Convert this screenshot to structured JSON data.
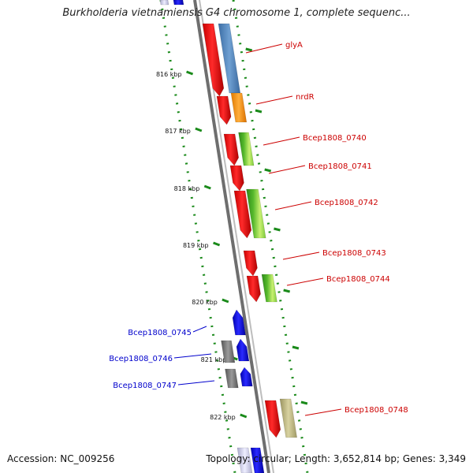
{
  "title": "Burkholderia vietnamiensis G4 chromosome 1, complete sequenc...",
  "footer": {
    "accession": "Accession: NC_009256",
    "summary": "Topology: circular; Length: 3,652,814 bp; Genes: 3,349"
  },
  "colors": {
    "forward_label": "#cc0000",
    "reverse_label": "#0000cc",
    "tick": "#1a8a1a",
    "backbone": "#777777",
    "cds_forward": "#ee0000",
    "cds_reverse": "#1111ee"
  },
  "scale_ticks": [
    "816 kbp",
    "817 kbp",
    "818 kbp",
    "819 kbp",
    "820 kbp",
    "821 kbp",
    "822 kbp"
  ],
  "genes_forward": [
    {
      "name": "glyA",
      "color": "#4f7fb3"
    },
    {
      "name": "nrdR",
      "color": "#f0900c"
    },
    {
      "name": "Bcep1808_0740",
      "color": "#5fb22a"
    },
    {
      "name": "Bcep1808_0741",
      "color": null
    },
    {
      "name": "Bcep1808_0742",
      "color": "#5fb22a"
    },
    {
      "name": "Bcep1808_0743",
      "color": null
    },
    {
      "name": "Bcep1808_0744",
      "color": "#5fb22a"
    },
    {
      "name": "Bcep1808_0748",
      "color": "#b5ad78"
    }
  ],
  "genes_reverse": [
    {
      "name": "Bcep1808_0745",
      "color": null
    },
    {
      "name": "Bcep1808_0746",
      "color": "#707070"
    },
    {
      "name": "Bcep1808_0747",
      "color": "#707070"
    }
  ]
}
